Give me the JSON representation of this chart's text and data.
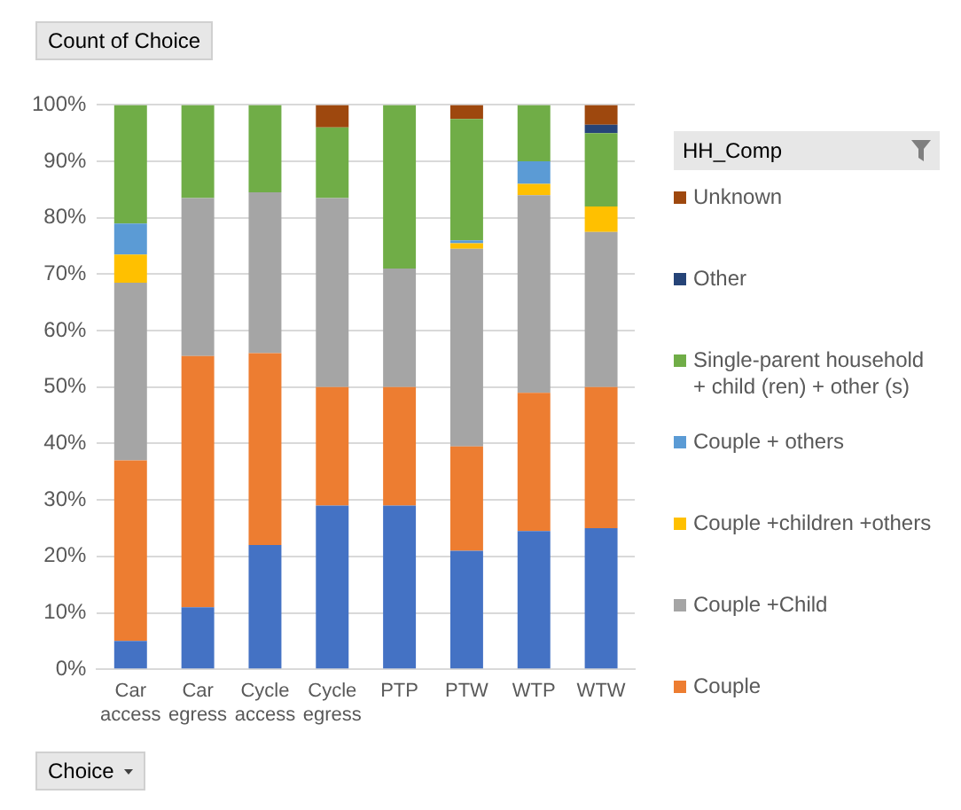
{
  "chart_data": {
    "type": "bar",
    "stacked": true,
    "title": "Count of Choice",
    "xlabel": "Choice",
    "legend_title": "HH_Comp",
    "legend": "right",
    "grid": "y",
    "categories": [
      "Car access",
      "Car egress",
      "Cycle access",
      "Cycle egress",
      "PTP",
      "PTW",
      "WTP",
      "WTW"
    ],
    "series": [
      {
        "color": "#4472c4",
        "values": [
          5,
          11,
          22,
          29,
          29,
          21,
          24.5,
          25
        ]
      },
      {
        "name": "Couple",
        "color": "#ed7d31",
        "values": [
          32,
          44.5,
          34,
          21,
          21,
          18.5,
          24.5,
          25
        ]
      },
      {
        "name": "Couple +Child",
        "color": "#a5a5a5",
        "values": [
          31.5,
          28,
          28.5,
          33.5,
          21,
          35,
          35,
          27.5
        ]
      },
      {
        "name": "Couple +children +others",
        "color": "#ffc000",
        "values": [
          5,
          0,
          0,
          0,
          0,
          1,
          2,
          4.5
        ]
      },
      {
        "name": "Couple + others",
        "color": "#5b9bd5",
        "values": [
          5.5,
          0,
          0,
          0,
          0,
          0.5,
          4,
          0
        ]
      },
      {
        "name": "Single-parent household + child (ren) + other (s)",
        "color": "#70ad47",
        "values": [
          21,
          16.5,
          15.5,
          12.5,
          29,
          21.5,
          10,
          13
        ]
      },
      {
        "name": "Other",
        "color": "#264478",
        "values": [
          0,
          0,
          0,
          0,
          0,
          0,
          0,
          1.5
        ]
      },
      {
        "name": "Unknown",
        "color": "#9e480e",
        "values": [
          0,
          0,
          0,
          4,
          0,
          2.5,
          0,
          3.5
        ]
      }
    ],
    "ylim": [
      0,
      100
    ],
    "yticks": [
      {
        "value": 0,
        "label": "0%"
      },
      {
        "value": 10,
        "label": "10%"
      },
      {
        "value": 20,
        "label": "20%"
      },
      {
        "value": 30,
        "label": "30%"
      },
      {
        "value": 40,
        "label": "40%"
      },
      {
        "value": 50,
        "label": "50%"
      },
      {
        "value": 60,
        "label": "60%"
      },
      {
        "value": 70,
        "label": "70%"
      },
      {
        "value": 80,
        "label": "80%"
      },
      {
        "value": 90,
        "label": "90%"
      },
      {
        "value": 100,
        "label": "100%"
      }
    ]
  }
}
